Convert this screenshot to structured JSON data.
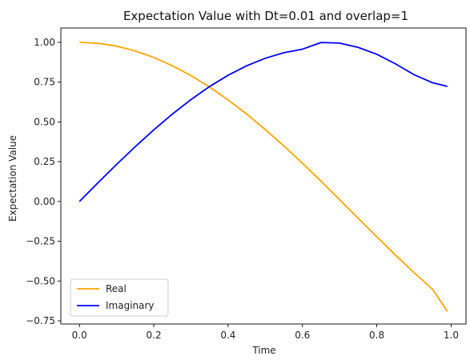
{
  "chart_data": {
    "type": "line",
    "title": "Expectation Value with Dt=0.01 and overlap=1",
    "xlabel": "Time",
    "ylabel": "Expectation Value",
    "xlim": [
      -0.05,
      1.04
    ],
    "ylim": [
      -0.77,
      1.09
    ],
    "xticks": [
      0.0,
      0.2,
      0.4,
      0.6,
      0.8,
      1.0
    ],
    "xtick_labels": [
      "0.0",
      "0.2",
      "0.4",
      "0.6",
      "0.8",
      "1.0"
    ],
    "yticks": [
      -0.75,
      -0.5,
      -0.25,
      0.0,
      0.25,
      0.5,
      0.75,
      1.0
    ],
    "ytick_labels": [
      "−0.75",
      "−0.50",
      "−0.25",
      "0.00",
      "0.25",
      "0.50",
      "0.75",
      "1.00"
    ],
    "grid": false,
    "legend_position": "lower-left",
    "series": [
      {
        "name": "Real",
        "color": "#FFA500",
        "x": [
          0.0,
          0.05,
          0.1,
          0.15,
          0.2,
          0.25,
          0.3,
          0.35,
          0.4,
          0.45,
          0.5,
          0.55,
          0.6,
          0.65,
          0.7,
          0.75,
          0.8,
          0.85,
          0.9,
          0.95,
          0.99
        ],
        "y": [
          1.0,
          0.994,
          0.976,
          0.946,
          0.905,
          0.853,
          0.791,
          0.719,
          0.638,
          0.549,
          0.452,
          0.349,
          0.24,
          0.127,
          0.011,
          -0.106,
          -0.222,
          -0.336,
          -0.447,
          -0.552,
          -0.691
        ]
      },
      {
        "name": "Imaginary",
        "color": "#0000FF",
        "x": [
          0.0,
          0.05,
          0.1,
          0.15,
          0.2,
          0.25,
          0.3,
          0.35,
          0.4,
          0.45,
          0.5,
          0.55,
          0.6,
          0.65,
          0.7,
          0.75,
          0.8,
          0.85,
          0.9,
          0.95,
          0.99
        ],
        "y": [
          0.0,
          0.118,
          0.233,
          0.344,
          0.45,
          0.549,
          0.64,
          0.722,
          0.793,
          0.853,
          0.9,
          0.935,
          0.957,
          0.999,
          0.995,
          0.968,
          0.925,
          0.865,
          0.797,
          0.746,
          0.723
        ]
      }
    ]
  }
}
